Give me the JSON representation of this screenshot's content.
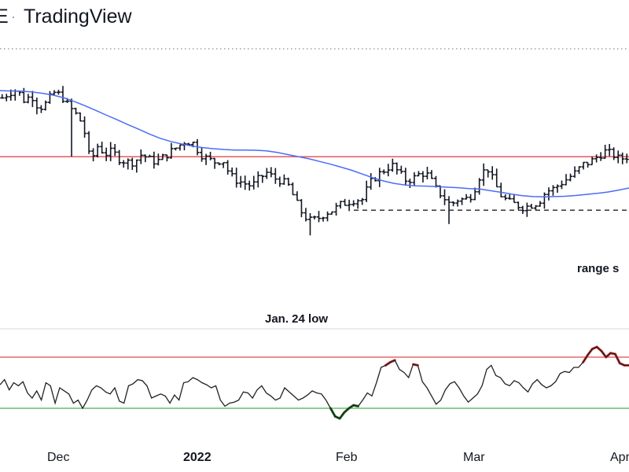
{
  "header": {
    "title_prefix": "E",
    "separator": "·",
    "brand": "TradingView"
  },
  "colors": {
    "bars": "#131722",
    "moving_average": "#4a6cf7",
    "resistance": "#e04b4b",
    "oscillator": "#222222",
    "overbought": "#e04b4b",
    "oversold": "#4caf50",
    "oversold_highlight": "#1e6b1e",
    "overbought_highlight": "#c62828"
  },
  "chart_data": [
    {
      "type": "ohlc",
      "title": "",
      "x_axis": {
        "labels": [
          "Dec",
          "2022",
          "Feb",
          "Mar",
          "Apr"
        ],
        "bold_label": "2022"
      },
      "ylim": [
        0,
        100
      ],
      "price_path": [
        84,
        86,
        87,
        83,
        85,
        80,
        82,
        86,
        85,
        81,
        78,
        74,
        60,
        66,
        63,
        64,
        61,
        60,
        60,
        63,
        61,
        60,
        62,
        64,
        66,
        68,
        67,
        63,
        61,
        60,
        61,
        55,
        53,
        52,
        51,
        54,
        56,
        54,
        53,
        51,
        45,
        40,
        38,
        39,
        41,
        42,
        44,
        45,
        46,
        46,
        52,
        55,
        57,
        59,
        56,
        53,
        54,
        56,
        55,
        50,
        47,
        44,
        46,
        46,
        48,
        55,
        58,
        52,
        47,
        45,
        44,
        43,
        44,
        45,
        49,
        50,
        52,
        54,
        56,
        59,
        60,
        62,
        64,
        63,
        61,
        62
      ],
      "moving_average": [
        86.7,
        86.6,
        86.5,
        86.2,
        85.7,
        85.0,
        84.0,
        82.6,
        81.0,
        79.3,
        77.5,
        75.8,
        74.0,
        72.3,
        70.5,
        68.9,
        67.7,
        66.8,
        66.0,
        65.4,
        65.0,
        64.7,
        64.5,
        64.5,
        64.4,
        64.2,
        63.6,
        62.8,
        62.0,
        61.2,
        60.2,
        59.2,
        58.1,
        56.9,
        55.5,
        54.1,
        52.9,
        52.0,
        51.4,
        51.1,
        51.0,
        50.8,
        50.6,
        50.4,
        50.1,
        49.9,
        49.3,
        48.7,
        48.0,
        47.4,
        47.1,
        47.0,
        47.1,
        47.2,
        47.5,
        47.9,
        48.3,
        48.8,
        49.5,
        50.3
      ],
      "resistance_level": 62,
      "range_support_level": 42,
      "annotations": [
        {
          "text": "Jan. 24 low"
        },
        {
          "text": "range s"
        }
      ]
    },
    {
      "type": "line",
      "title": "",
      "ylim": [
        0,
        100
      ],
      "overbought_level": 80,
      "oversold_level": 30,
      "values": [
        53,
        58,
        48,
        55,
        52,
        56,
        45,
        40,
        47,
        38,
        55,
        52,
        35,
        50,
        47,
        44,
        35,
        38,
        30,
        38,
        48,
        52,
        50,
        46,
        44,
        50,
        37,
        35,
        52,
        54,
        58,
        57,
        52,
        40,
        42,
        44,
        42,
        35,
        43,
        38,
        55,
        56,
        60,
        58,
        55,
        53,
        50,
        52,
        38,
        32,
        35,
        36,
        38,
        46,
        45,
        40,
        48,
        52,
        45,
        42,
        38,
        40,
        50,
        46,
        42,
        38,
        40,
        43,
        47,
        45,
        44,
        38,
        30,
        22,
        20,
        26,
        30,
        33,
        32,
        38,
        45,
        42,
        55,
        70,
        72,
        75,
        77,
        68,
        65,
        60,
        73,
        72,
        56,
        50,
        42,
        34,
        38,
        48,
        54,
        56,
        50,
        42,
        36,
        40,
        44,
        52,
        68,
        72,
        62,
        60,
        54,
        52,
        57,
        55,
        50,
        46,
        54,
        58,
        53,
        50,
        52,
        56,
        64,
        66,
        65,
        70,
        70,
        75,
        82,
        88,
        90,
        86,
        80,
        84,
        83,
        74,
        72,
        72
      ]
    }
  ]
}
